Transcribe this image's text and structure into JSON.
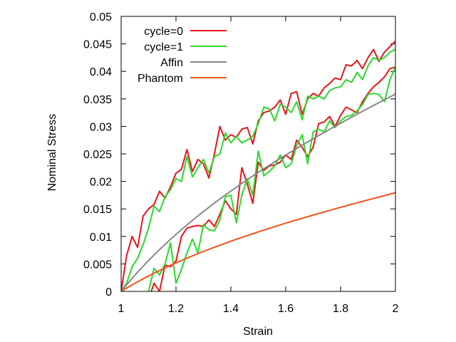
{
  "chart_data": {
    "type": "line",
    "xlabel": "Strain",
    "ylabel": "Nominal Stress",
    "xlim": [
      1,
      2
    ],
    "ylim": [
      0,
      0.05
    ],
    "xticks": [
      "1",
      "1.2",
      "1.4",
      "1.6",
      "1.8",
      "2"
    ],
    "yticks": [
      "0",
      "0.005",
      "0.01",
      "0.015",
      "0.02",
      "0.025",
      "0.03",
      "0.035",
      "0.04",
      "0.045",
      "0.05"
    ],
    "grid": false,
    "legend_position": "top-left",
    "series": [
      {
        "name": "cycle=0",
        "color": "#e8141b",
        "segments": [
          [
            [
              1.0,
              0.0
            ],
            [
              1.02,
              0.0065
            ],
            [
              1.04,
              0.01
            ],
            [
              1.06,
              0.008
            ],
            [
              1.08,
              0.0137
            ],
            [
              1.1,
              0.015
            ],
            [
              1.12,
              0.0158
            ],
            [
              1.14,
              0.0182
            ],
            [
              1.16,
              0.017
            ],
            [
              1.18,
              0.019
            ],
            [
              1.2,
              0.0215
            ],
            [
              1.22,
              0.0222
            ],
            [
              1.24,
              0.0258
            ],
            [
              1.26,
              0.0218
            ],
            [
              1.28,
              0.024
            ],
            [
              1.3,
              0.0232
            ],
            [
              1.32,
              0.0206
            ],
            [
              1.34,
              0.025
            ],
            [
              1.36,
              0.03
            ],
            [
              1.38,
              0.0275
            ],
            [
              1.4,
              0.0285
            ],
            [
              1.42,
              0.028
            ],
            [
              1.44,
              0.0295
            ],
            [
              1.46,
              0.0298
            ],
            [
              1.48,
              0.0268
            ],
            [
              1.5,
              0.031
            ],
            [
              1.52,
              0.0325
            ],
            [
              1.54,
              0.0328
            ],
            [
              1.56,
              0.0335
            ],
            [
              1.58,
              0.0348
            ],
            [
              1.6,
              0.0322
            ],
            [
              1.62,
              0.036
            ],
            [
              1.64,
              0.0363
            ],
            [
              1.66,
              0.0322
            ],
            [
              1.68,
              0.035
            ],
            [
              1.7,
              0.036
            ],
            [
              1.72,
              0.0355
            ],
            [
              1.74,
              0.037
            ],
            [
              1.76,
              0.0378
            ],
            [
              1.78,
              0.0388
            ],
            [
              1.8,
              0.0385
            ],
            [
              1.82,
              0.0412
            ],
            [
              1.84,
              0.041
            ],
            [
              1.86,
              0.042
            ],
            [
              1.88,
              0.0405
            ],
            [
              1.9,
              0.0425
            ],
            [
              1.92,
              0.044
            ],
            [
              1.94,
              0.0418
            ],
            [
              1.96,
              0.0435
            ],
            [
              1.98,
              0.0445
            ],
            [
              2.0,
              0.0455
            ]
          ],
          [
            [
              1.11,
              0.0
            ],
            [
              1.12,
              0.0015
            ],
            [
              1.14,
              0.0
            ],
            [
              1.16,
              0.0048
            ],
            [
              1.18,
              0.0045
            ],
            [
              1.2,
              0.0055
            ],
            [
              1.22,
              0.01
            ],
            [
              1.24,
              0.0115
            ],
            [
              1.26,
              0.0118
            ],
            [
              1.28,
              0.012
            ],
            [
              1.3,
              0.0118
            ],
            [
              1.32,
              0.013
            ],
            [
              1.34,
              0.0118
            ],
            [
              1.36,
              0.014
            ],
            [
              1.38,
              0.0165
            ],
            [
              1.4,
              0.015
            ],
            [
              1.42,
              0.014
            ],
            [
              1.44,
              0.0225
            ],
            [
              1.46,
              0.0195
            ],
            [
              1.48,
              0.016
            ],
            [
              1.5,
              0.0235
            ],
            [
              1.52,
              0.022
            ],
            [
              1.54,
              0.0228
            ],
            [
              1.56,
              0.023
            ],
            [
              1.58,
              0.0235
            ],
            [
              1.6,
              0.0248
            ],
            [
              1.62,
              0.024
            ],
            [
              1.64,
              0.0275
            ],
            [
              1.66,
              0.0262
            ],
            [
              1.68,
              0.0245
            ],
            [
              1.7,
              0.0262
            ],
            [
              1.72,
              0.0305
            ],
            [
              1.74,
              0.0308
            ],
            [
              1.76,
              0.0318
            ],
            [
              1.78,
              0.03
            ],
            [
              1.8,
              0.032
            ],
            [
              1.82,
              0.0335
            ],
            [
              1.84,
              0.033
            ],
            [
              1.86,
              0.0325
            ],
            [
              1.88,
              0.0345
            ],
            [
              1.9,
              0.036
            ],
            [
              1.92,
              0.0372
            ],
            [
              1.94,
              0.038
            ],
            [
              1.96,
              0.039
            ],
            [
              1.98,
              0.0405
            ],
            [
              2.0,
              0.0408
            ]
          ]
        ]
      },
      {
        "name": "cycle=1",
        "color": "#2bd92b",
        "segments": [
          [
            [
              1.0,
              0.0
            ],
            [
              1.02,
              0.0015
            ],
            [
              1.04,
              0.0045
            ],
            [
              1.06,
              0.006
            ],
            [
              1.08,
              0.0085
            ],
            [
              1.1,
              0.0115
            ],
            [
              1.12,
              0.0155
            ],
            [
              1.14,
              0.0145
            ],
            [
              1.16,
              0.0172
            ],
            [
              1.18,
              0.0185
            ],
            [
              1.2,
              0.0205
            ],
            [
              1.22,
              0.02
            ],
            [
              1.24,
              0.0245
            ],
            [
              1.26,
              0.0208
            ],
            [
              1.28,
              0.0225
            ],
            [
              1.3,
              0.024
            ],
            [
              1.32,
              0.0215
            ],
            [
              1.34,
              0.0245
            ],
            [
              1.36,
              0.025
            ],
            [
              1.38,
              0.0288
            ],
            [
              1.4,
              0.027
            ],
            [
              1.42,
              0.0282
            ],
            [
              1.44,
              0.027
            ],
            [
              1.46,
              0.0275
            ],
            [
              1.48,
              0.0282
            ],
            [
              1.5,
              0.0305
            ],
            [
              1.52,
              0.0335
            ],
            [
              1.54,
              0.0332
            ],
            [
              1.56,
              0.031
            ],
            [
              1.58,
              0.034
            ],
            [
              1.6,
              0.0335
            ],
            [
              1.62,
              0.0325
            ],
            [
              1.64,
              0.0345
            ],
            [
              1.66,
              0.0312
            ],
            [
              1.68,
              0.0355
            ],
            [
              1.7,
              0.035
            ],
            [
              1.72,
              0.0355
            ],
            [
              1.74,
              0.035
            ],
            [
              1.76,
              0.0365
            ],
            [
              1.78,
              0.037
            ],
            [
              1.8,
              0.0372
            ],
            [
              1.82,
              0.0385
            ],
            [
              1.84,
              0.038
            ],
            [
              1.86,
              0.0398
            ],
            [
              1.88,
              0.0385
            ],
            [
              1.9,
              0.041
            ],
            [
              1.92,
              0.0425
            ],
            [
              1.94,
              0.042
            ],
            [
              1.96,
              0.0425
            ],
            [
              1.98,
              0.0435
            ],
            [
              2.0,
              0.044
            ]
          ],
          [
            [
              1.1,
              0.0
            ],
            [
              1.12,
              0.0042
            ],
            [
              1.14,
              0.003
            ],
            [
              1.16,
              0.005
            ],
            [
              1.18,
              0.0088
            ],
            [
              1.2,
              0.0015
            ],
            [
              1.22,
              0.004
            ],
            [
              1.24,
              0.007
            ],
            [
              1.26,
              0.0095
            ],
            [
              1.28,
              0.007
            ],
            [
              1.3,
              0.0122
            ],
            [
              1.32,
              0.0112
            ],
            [
              1.34,
              0.011
            ],
            [
              1.36,
              0.013
            ],
            [
              1.38,
              0.0172
            ],
            [
              1.4,
              0.0175
            ],
            [
              1.42,
              0.0125
            ],
            [
              1.44,
              0.0175
            ],
            [
              1.46,
              0.0205
            ],
            [
              1.48,
              0.0175
            ],
            [
              1.5,
              0.0255
            ],
            [
              1.52,
              0.021
            ],
            [
              1.54,
              0.0218
            ],
            [
              1.56,
              0.0228
            ],
            [
              1.58,
              0.0248
            ],
            [
              1.6,
              0.0225
            ],
            [
              1.62,
              0.0232
            ],
            [
              1.64,
              0.0265
            ],
            [
              1.66,
              0.0285
            ],
            [
              1.68,
              0.0232
            ],
            [
              1.7,
              0.029
            ],
            [
              1.72,
              0.0295
            ],
            [
              1.74,
              0.029
            ],
            [
              1.76,
              0.031
            ],
            [
              1.78,
              0.0298
            ],
            [
              1.8,
              0.031
            ],
            [
              1.82,
              0.0318
            ],
            [
              1.84,
              0.032
            ],
            [
              1.86,
              0.0328
            ],
            [
              1.88,
              0.034
            ],
            [
              1.9,
              0.0358
            ],
            [
              1.92,
              0.036
            ],
            [
              1.94,
              0.0358
            ],
            [
              1.96,
              0.0345
            ],
            [
              1.98,
              0.0385
            ],
            [
              2.0,
              0.0408
            ]
          ]
        ]
      },
      {
        "name": "Affin",
        "color": "#888888",
        "formula": "0.0205*(x - 1/(x*x))",
        "x_range": [
          1,
          2
        ]
      },
      {
        "name": "Phantom",
        "color": "#f0541b",
        "formula": "0.01025*(x - 1/(x*x))",
        "x_range": [
          1,
          2
        ]
      }
    ]
  }
}
